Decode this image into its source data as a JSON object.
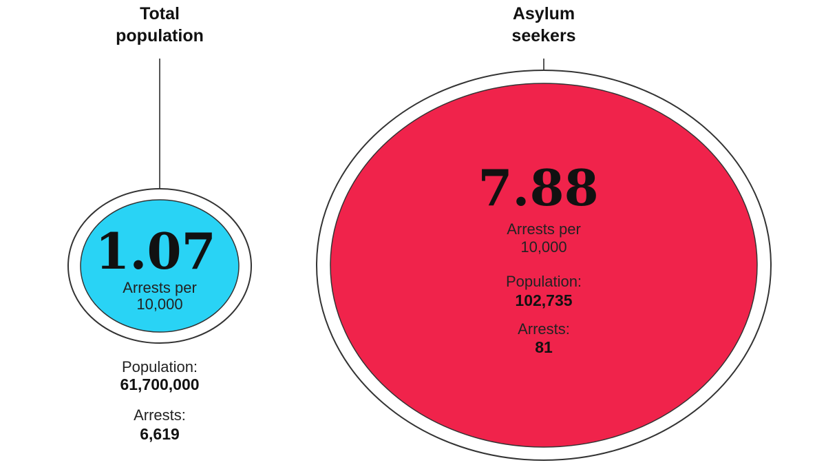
{
  "chart_data": {
    "type": "bubble",
    "unit_label": "Arrests per 10,000",
    "population_label": "Population:",
    "arrests_label": "Arrests:",
    "series": [
      {
        "name": "Total population",
        "rate": "1.07",
        "population": "61,700,000",
        "arrests": "6,619",
        "color": "#29d3f5"
      },
      {
        "name": "Asylum seekers",
        "rate": "7.88",
        "population": "102,735",
        "arrests": "81",
        "color": "#f0234b"
      }
    ]
  },
  "labels": {
    "total_title_line1": "Total",
    "total_title_line2": "population",
    "asylum_title_line1": "Asylum",
    "asylum_title_line2": "seekers",
    "arrests_per_line1": "Arrests per",
    "arrests_per_line2": "10,000"
  }
}
